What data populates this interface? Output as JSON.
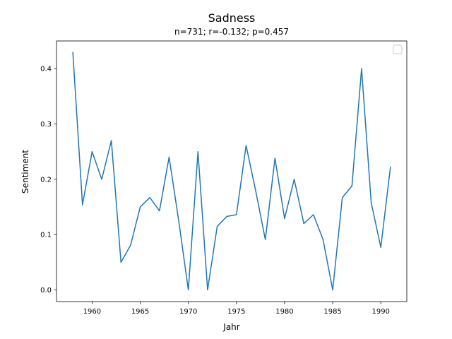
{
  "chart_data": {
    "type": "line",
    "title": "Sadness",
    "subtitle": "n=731; r=-0.132; p=0.457",
    "xlabel": "Jahr",
    "ylabel": "Sentiment",
    "xlim": [
      1956.3,
      1992.7
    ],
    "ylim": [
      -0.021,
      0.45
    ],
    "xticks": [
      1960,
      1965,
      1970,
      1975,
      1980,
      1985,
      1990
    ],
    "yticks": [
      0.0,
      0.1,
      0.2,
      0.3,
      0.4
    ],
    "ytick_labels": [
      "0.0",
      "0.1",
      "0.2",
      "0.3",
      "0.4"
    ],
    "legend": "top-right (empty)",
    "grid": false,
    "series": [
      {
        "color": "#1f77b4",
        "x": [
          1958,
          1959,
          1960,
          1961,
          1962,
          1963,
          1964,
          1965,
          1966,
          1967,
          1968,
          1969,
          1970,
          1971,
          1972,
          1973,
          1974,
          1975,
          1976,
          1977,
          1978,
          1979,
          1980,
          1981,
          1982,
          1983,
          1984,
          1985,
          1986,
          1987,
          1988,
          1989,
          1990,
          1991
        ],
        "y": [
          0.429,
          0.154,
          0.25,
          0.2,
          0.27,
          0.05,
          0.081,
          0.15,
          0.167,
          0.143,
          0.24,
          0.125,
          0.0,
          0.25,
          0.0,
          0.115,
          0.133,
          0.136,
          0.261,
          0.179,
          0.091,
          0.238,
          0.129,
          0.2,
          0.12,
          0.136,
          0.091,
          0.0,
          0.167,
          0.188,
          0.4,
          0.158,
          0.077,
          0.222
        ]
      }
    ]
  }
}
